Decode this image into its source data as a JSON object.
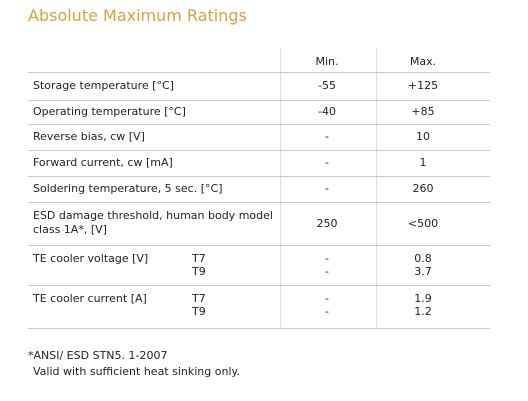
{
  "header": {
    "title": "Absolute Maximum Ratings"
  },
  "table": {
    "columns": {
      "min": "Min.",
      "max": "Max."
    },
    "rows": [
      {
        "label": "Storage temperature [°C]",
        "min": "-55",
        "max": "+125"
      },
      {
        "label": "Operating temperature [°C]",
        "min": "-40",
        "max": "+85"
      },
      {
        "label": "Reverse bias, cw [V]",
        "min": "-",
        "max": "10"
      },
      {
        "label": "Forward current, cw [mA]",
        "min": "-",
        "max": "1"
      },
      {
        "label": "Soldering temperature, 5 sec. [°C]",
        "min": "-",
        "max": "260"
      },
      {
        "label": "ESD damage threshold, human body model class 1A*, [V]",
        "min": "250",
        "max": "<500"
      },
      {
        "label": "TE cooler voltage [V]",
        "variants": [
          {
            "name": "T7",
            "min": "-",
            "max": "0.8"
          },
          {
            "name": "T9",
            "min": "-",
            "max": "3.7"
          }
        ]
      },
      {
        "label": "TE cooler current [A]",
        "variants": [
          {
            "name": "T7",
            "min": "-",
            "max": "1.9"
          },
          {
            "name": "T9",
            "min": "-",
            "max": "1.2"
          }
        ]
      }
    ]
  },
  "footnotes": [
    "*ANSI/ ESD STN5. 1-2007",
    "Valid with sufficient heat sinking only."
  ]
}
